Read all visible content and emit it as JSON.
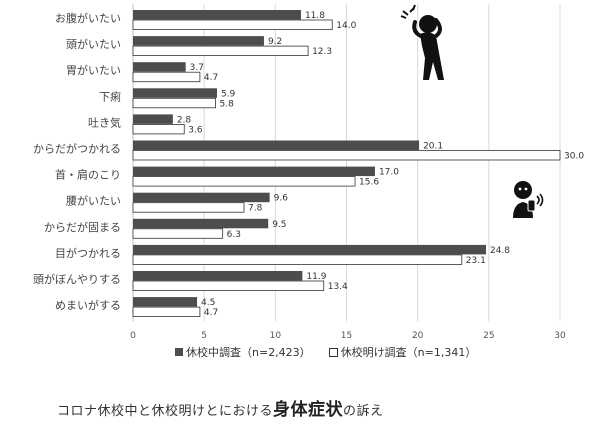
{
  "chart_data": {
    "type": "bar",
    "orientation": "horizontal",
    "categories": [
      "お腹がいたい",
      "頭がいたい",
      "胃がいたい",
      "下痢",
      "吐き気",
      "からだがつかれる",
      "首・肩のこり",
      "腰がいたい",
      "からだが固まる",
      "目がつかれる",
      "頭がぼんやりする",
      "めまいがする"
    ],
    "series": [
      {
        "name": "休校中調査（n=2,423）",
        "values": [
          11.8,
          9.2,
          3.7,
          5.9,
          2.8,
          20.1,
          17.0,
          9.6,
          9.5,
          24.8,
          11.9,
          4.5
        ],
        "value_labels": [
          "11.8",
          "9.2",
          "3.7",
          "5.9",
          "2.8",
          "20.1",
          "17.0",
          "9.6",
          "9.5",
          "24.8",
          "11.9",
          "4.5"
        ],
        "color": "#4d4d4d"
      },
      {
        "name": "休校明け調査（n=1,341）",
        "values": [
          14.0,
          12.3,
          4.7,
          5.8,
          3.6,
          30.0,
          15.6,
          7.8,
          6.3,
          23.1,
          13.4,
          4.7
        ],
        "value_labels": [
          "14.0",
          "12.3",
          "4.7",
          "5.8",
          "3.6",
          "30.0",
          "15.6",
          "7.8",
          "6.3",
          "23.1",
          "13.4",
          "4.7"
        ],
        "color": "#ffffff"
      }
    ],
    "xlim": [
      0,
      30
    ],
    "xticks": [
      "0",
      "5",
      "10",
      "15",
      "20",
      "25",
      "30"
    ],
    "grid": true,
    "legend_position": "bottom"
  },
  "caption": {
    "before": "コロナ休校中と休校明けとにおける",
    "emphasis": "身体症状",
    "after": "の訴え"
  },
  "icons": [
    "headache-person-icon",
    "phone-eye-strain-person-icon"
  ]
}
